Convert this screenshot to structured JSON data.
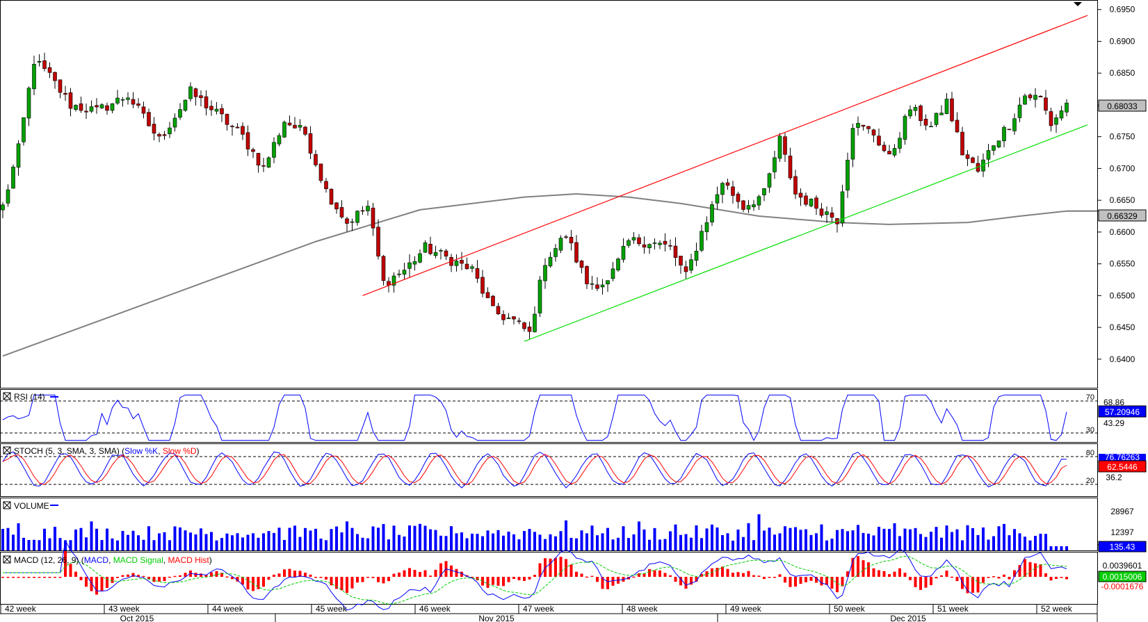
{
  "chart_data": {
    "type": "candlestick",
    "period": "daily",
    "price_axis": {
      "ticks": [
        "0.6950",
        "0.6900",
        "0.6850",
        "0.6800",
        "0.6750",
        "0.6700",
        "0.6650",
        "0.6600",
        "0.6550",
        "0.6500",
        "0.6450",
        "0.6400"
      ],
      "range": [
        0.6355,
        0.6965
      ],
      "last_price_label": "0.68033",
      "ma_label": "0.66329"
    },
    "time_axis": {
      "weeks": [
        "42 week",
        "43 week",
        "44 week",
        "45 week",
        "46 week",
        "47 week",
        "48 week",
        "49 week",
        "50 week",
        "51 week",
        "52 week"
      ],
      "months": [
        "Oct 2015",
        "Nov 2015",
        "Dec 2015"
      ]
    },
    "anchors": [
      {
        "t": 0,
        "c": 0.664
      },
      {
        "t": 3,
        "c": 0.673
      },
      {
        "t": 6,
        "c": 0.687
      },
      {
        "t": 9,
        "c": 0.6845
      },
      {
        "t": 13,
        "c": 0.68
      },
      {
        "t": 18,
        "c": 0.679
      },
      {
        "t": 24,
        "c": 0.6815
      },
      {
        "t": 30,
        "c": 0.6745
      },
      {
        "t": 36,
        "c": 0.682
      },
      {
        "t": 42,
        "c": 0.678
      },
      {
        "t": 46,
        "c": 0.675
      },
      {
        "t": 50,
        "c": 0.67
      },
      {
        "t": 54,
        "c": 0.6775
      },
      {
        "t": 58,
        "c": 0.6755
      },
      {
        "t": 62,
        "c": 0.6665
      },
      {
        "t": 66,
        "c": 0.6615
      },
      {
        "t": 70,
        "c": 0.664
      },
      {
        "t": 73,
        "c": 0.652
      },
      {
        "t": 77,
        "c": 0.654
      },
      {
        "t": 81,
        "c": 0.6575
      },
      {
        "t": 85,
        "c": 0.656
      },
      {
        "t": 90,
        "c": 0.654
      },
      {
        "t": 94,
        "c": 0.6475
      },
      {
        "t": 98,
        "c": 0.646
      },
      {
        "t": 101,
        "c": 0.644
      },
      {
        "t": 104,
        "c": 0.6555
      },
      {
        "t": 108,
        "c": 0.6595
      },
      {
        "t": 112,
        "c": 0.652
      },
      {
        "t": 116,
        "c": 0.652
      },
      {
        "t": 120,
        "c": 0.6585
      },
      {
        "t": 124,
        "c": 0.6585
      },
      {
        "t": 128,
        "c": 0.6575
      },
      {
        "t": 131,
        "c": 0.653
      },
      {
        "t": 134,
        "c": 0.66
      },
      {
        "t": 138,
        "c": 0.668
      },
      {
        "t": 142,
        "c": 0.664
      },
      {
        "t": 146,
        "c": 0.666
      },
      {
        "t": 149,
        "c": 0.6745
      },
      {
        "t": 152,
        "c": 0.666
      },
      {
        "t": 156,
        "c": 0.664
      },
      {
        "t": 160,
        "c": 0.662
      },
      {
        "t": 163,
        "c": 0.677
      },
      {
        "t": 167,
        "c": 0.6755
      },
      {
        "t": 170,
        "c": 0.6715
      },
      {
        "t": 174,
        "c": 0.6795
      },
      {
        "t": 178,
        "c": 0.6765
      },
      {
        "t": 181,
        "c": 0.6805
      },
      {
        "t": 184,
        "c": 0.6725
      },
      {
        "t": 187,
        "c": 0.6695
      },
      {
        "t": 190,
        "c": 0.674
      },
      {
        "t": 193,
        "c": 0.677
      },
      {
        "t": 196,
        "c": 0.6815
      },
      {
        "t": 199,
        "c": 0.681
      },
      {
        "t": 201,
        "c": 0.677
      },
      {
        "t": 204,
        "c": 0.6803
      }
    ],
    "ma": {
      "label": "",
      "points": [
        {
          "t": 0,
          "v": 0.6405
        },
        {
          "t": 20,
          "v": 0.6465
        },
        {
          "t": 40,
          "v": 0.6525
        },
        {
          "t": 60,
          "v": 0.6585
        },
        {
          "t": 80,
          "v": 0.6635
        },
        {
          "t": 100,
          "v": 0.6655
        },
        {
          "t": 110,
          "v": 0.666
        },
        {
          "t": 120,
          "v": 0.6655
        },
        {
          "t": 130,
          "v": 0.6645
        },
        {
          "t": 145,
          "v": 0.6625
        },
        {
          "t": 160,
          "v": 0.6615
        },
        {
          "t": 170,
          "v": 0.6612
        },
        {
          "t": 185,
          "v": 0.6615
        },
        {
          "t": 195,
          "v": 0.6625
        },
        {
          "t": 204,
          "v": 0.6633
        }
      ]
    },
    "trendlines": [
      {
        "color": "#ff0000",
        "from": {
          "t": 69,
          "v": 0.65
        },
        "to": {
          "t": 204,
          "v": 0.6928
        }
      },
      {
        "color": "#00dd00",
        "from": {
          "t": 100,
          "v": 0.6428
        },
        "to": {
          "t": 204,
          "v": 0.6756
        }
      }
    ],
    "panels": {
      "rsi": {
        "title": "RSI (14)",
        "levels": [
          "70",
          "30"
        ],
        "max_label": "68.86",
        "min_label": "43.29",
        "value_label": "57.20946",
        "color": "#0000ff"
      },
      "stoch": {
        "title_prefix": "STOCH (5, 3, SMA, 3, SMA)",
        "k_label": "Slow %K",
        "d_label": "Slow %D",
        "levels": [
          "80",
          "20"
        ],
        "k_value": "76.76263",
        "d_value": "62.5446",
        "min_label": "36.2",
        "k_color": "#0000ff",
        "d_color": "#ff0000"
      },
      "volume": {
        "title": "VOLUME",
        "max_label": "28967",
        "mid_label": "12397",
        "value_label": "135.43",
        "color": "#0000ff"
      },
      "macd": {
        "title_prefix": "MACD (12, 26, 9)",
        "line_label": "MACD",
        "signal_label": "MACD Signal",
        "hist_label": "MACD Hist",
        "max_label": "0.0039601",
        "signal_value": "0.0015006",
        "hist_value": "-0.0001676",
        "line_color": "#0000ff",
        "signal_color": "#00cc00",
        "hist_color": "#ff0000"
      }
    },
    "colors": {
      "up_candle": "#00a000",
      "down_candle": "#c00000",
      "frame": "#000000",
      "ma": "#808080",
      "price_label_bg": "#c0c0c0"
    }
  }
}
